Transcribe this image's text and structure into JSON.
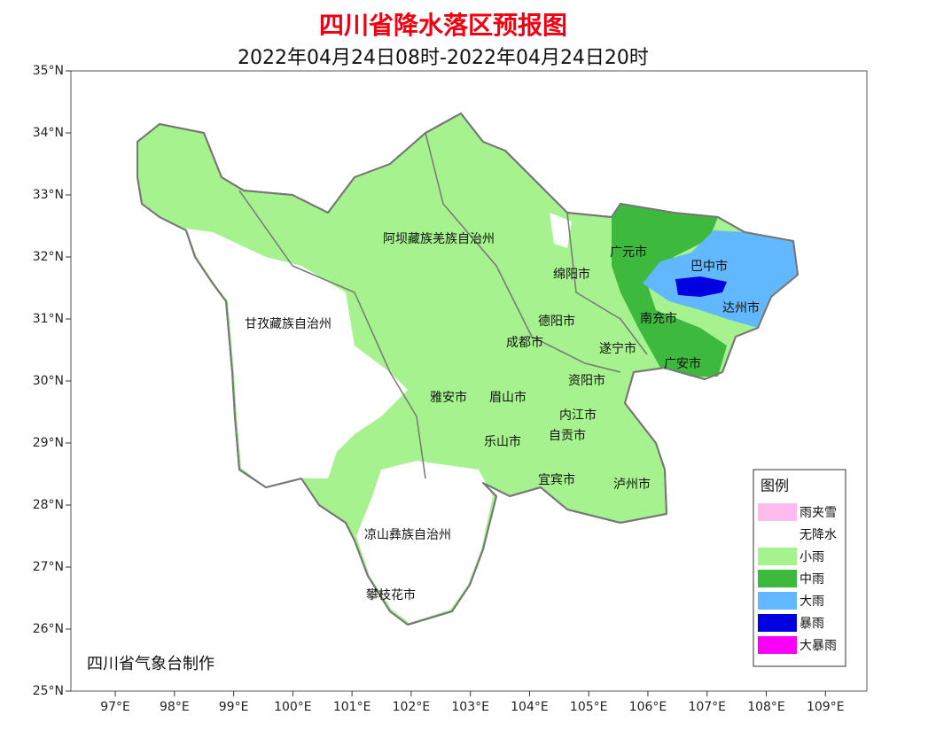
{
  "header": {
    "title": "四川省降水落区预报图",
    "subtitle": "2022年04月24日08时-2022年04月24日20时"
  },
  "axes": {
    "xlim": [
      96.25,
      109.7
    ],
    "ylim": [
      25,
      35
    ],
    "xticks": [
      {
        "value": 97,
        "label": "97°E"
      },
      {
        "value": 98,
        "label": "98°E"
      },
      {
        "value": 99,
        "label": "99°E"
      },
      {
        "value": 100,
        "label": "100°E"
      },
      {
        "value": 101,
        "label": "101°E"
      },
      {
        "value": 102,
        "label": "102°E"
      },
      {
        "value": 103,
        "label": "103°E"
      },
      {
        "value": 104,
        "label": "104°E"
      },
      {
        "value": 105,
        "label": "105°E"
      },
      {
        "value": 106,
        "label": "106°E"
      },
      {
        "value": 107,
        "label": "107°E"
      },
      {
        "value": 108,
        "label": "108°E"
      },
      {
        "value": 109,
        "label": "109°E"
      }
    ],
    "yticks": [
      {
        "value": 25,
        "label": "25°N"
      },
      {
        "value": 26,
        "label": "26°N"
      },
      {
        "value": 27,
        "label": "27°N"
      },
      {
        "value": 28,
        "label": "28°N"
      },
      {
        "value": 29,
        "label": "29°N"
      },
      {
        "value": 30,
        "label": "30°N"
      },
      {
        "value": 31,
        "label": "31°N"
      },
      {
        "value": 32,
        "label": "32°N"
      },
      {
        "value": 33,
        "label": "33°N"
      },
      {
        "value": 34,
        "label": "34°N"
      },
      {
        "value": 35,
        "label": "35°N"
      }
    ]
  },
  "regions": [
    "阿坝藏族羌族自治州",
    "甘孜藏族自治州",
    "广元市",
    "巴中市",
    "绵阳市",
    "达州市",
    "德阳市",
    "南充市",
    "成都市",
    "遂宁市",
    "广安市",
    "雅安市",
    "眉山市",
    "资阳市",
    "内江市",
    "自贡市",
    "乐山市",
    "宜宾市",
    "泸州市",
    "凉山彝族自治州",
    "攀枝花市"
  ],
  "legend": {
    "title": "图例",
    "items": [
      {
        "label": "雨夹雪",
        "color": "#ffbbee"
      },
      {
        "label": "无降水",
        "color": "#ffffff"
      },
      {
        "label": "小雨",
        "color": "#a6f28f"
      },
      {
        "label": "中雨",
        "color": "#3db93d"
      },
      {
        "label": "大雨",
        "color": "#61b8ff"
      },
      {
        "label": "暴雨",
        "color": "#0000e1"
      },
      {
        "label": "大暴雨",
        "color": "#fa00fa"
      }
    ]
  },
  "credit": "四川省气象台制作"
}
